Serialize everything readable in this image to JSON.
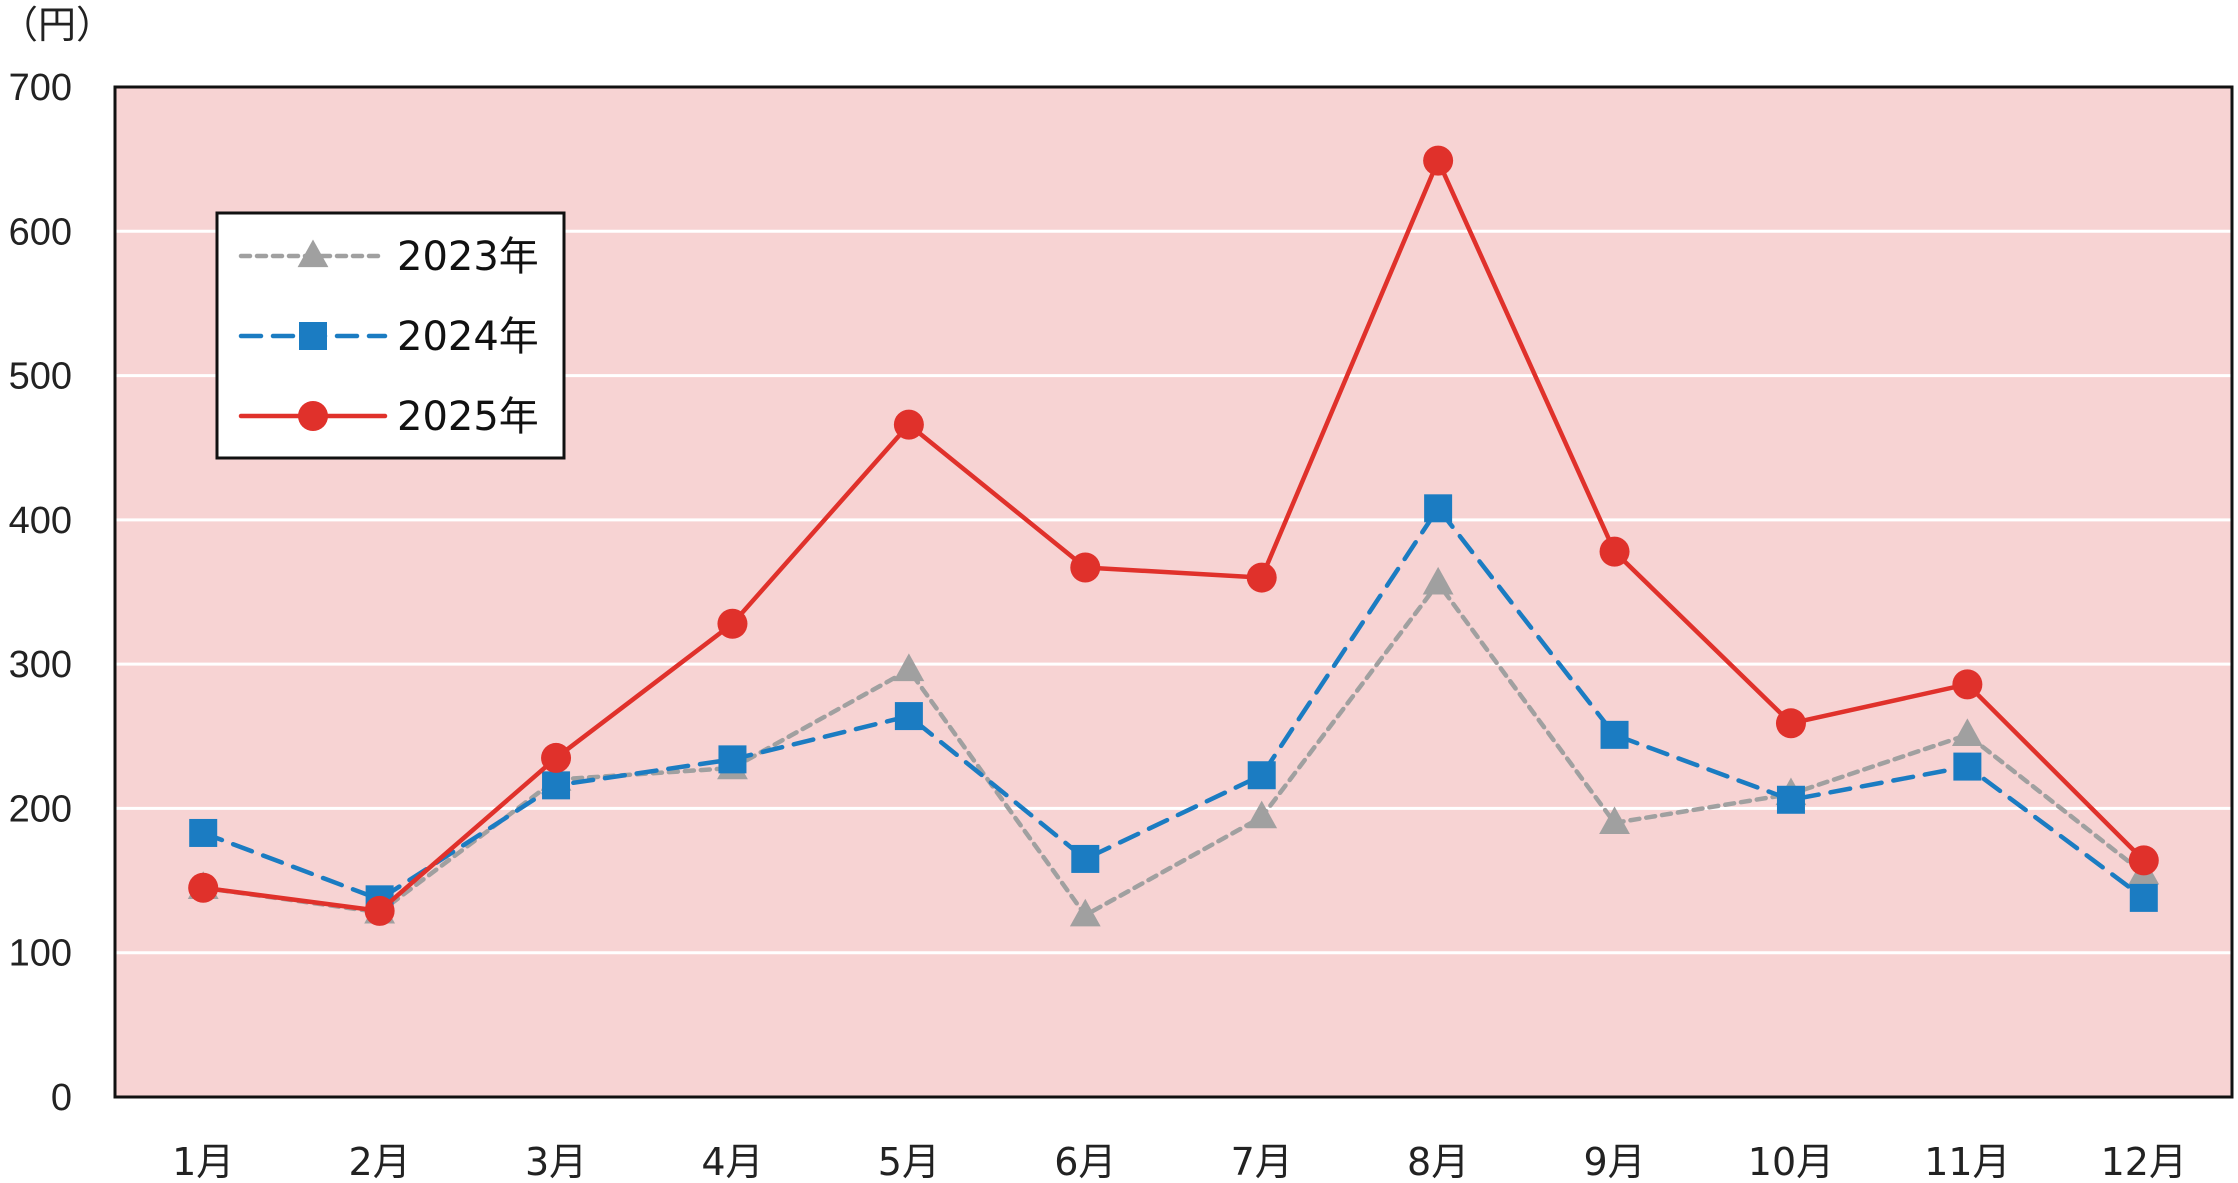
{
  "chart_data": {
    "type": "line",
    "y_unit": "（円）",
    "categories": [
      "1月",
      "2月",
      "3月",
      "4月",
      "5月",
      "6月",
      "7月",
      "8月",
      "9月",
      "10月",
      "11月",
      "12月"
    ],
    "ylim": [
      0,
      700
    ],
    "yticks": [
      "0",
      "100",
      "200",
      "300",
      "400",
      "500",
      "600",
      "700"
    ],
    "grid": true,
    "plot_background": "#f7d3d3",
    "legend_position": "top-left",
    "series": [
      {
        "name": "2023年",
        "values": [
          145,
          128,
          220,
          228,
          296,
          126,
          194,
          356,
          190,
          210,
          251,
          155
        ],
        "color": "#a0a0a0",
        "line_style": "dotted",
        "marker": "triangle"
      },
      {
        "name": "2024年",
        "values": [
          183,
          137,
          216,
          234,
          264,
          165,
          223,
          408,
          251,
          206,
          229,
          138
        ],
        "color": "#1b7cc2",
        "line_style": "dashed",
        "marker": "square"
      },
      {
        "name": "2025年",
        "values": [
          145,
          129,
          235,
          328,
          466,
          367,
          360,
          649,
          378,
          259,
          286,
          164
        ],
        "color": "#e0312b",
        "line_style": "solid",
        "marker": "circle"
      }
    ]
  }
}
